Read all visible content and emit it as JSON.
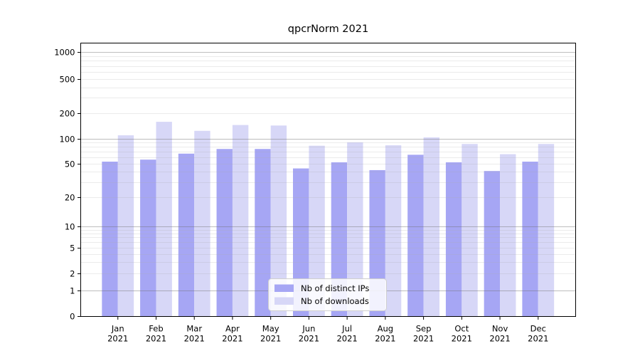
{
  "chart_data": {
    "type": "bar",
    "title": "qpcrNorm 2021",
    "xlabel": "",
    "ylabel": "",
    "year": "2021",
    "categories": [
      "Jan",
      "Feb",
      "Mar",
      "Apr",
      "May",
      "Jun",
      "Jul",
      "Aug",
      "Sep",
      "Oct",
      "Nov",
      "Dec"
    ],
    "series": [
      {
        "name": "Nb of distinct IPs",
        "color": "#a6a6f4",
        "values": [
          53,
          56,
          66,
          75,
          75,
          44,
          52,
          42,
          64,
          52,
          41,
          53
        ]
      },
      {
        "name": "Nb of downloads",
        "color": "#d7d7f7",
        "values": [
          109,
          157,
          123,
          144,
          142,
          82,
          90,
          83,
          103,
          86,
          65,
          86
        ]
      }
    ],
    "yticks": [
      0,
      1,
      2,
      5,
      10,
      20,
      50,
      100,
      200,
      500,
      1000
    ],
    "yscale": "symlog",
    "ylim": [
      0,
      1200
    ],
    "grid": {
      "on": true,
      "major_at": [
        1,
        10,
        100,
        1000
      ],
      "minor_multiples": [
        2,
        3,
        4,
        5,
        6,
        7,
        8,
        9
      ]
    },
    "legend": {
      "position": "inside-bottom-center",
      "items": [
        "Nb of distinct IPs",
        "Nb of downloads"
      ]
    },
    "scale_anchors": [
      [
        0,
        444
      ],
      [
        1,
        408
      ],
      [
        2,
        384
      ],
      [
        5,
        348
      ],
      [
        10,
        318
      ],
      [
        20,
        277
      ],
      [
        50,
        230
      ],
      [
        100,
        194.5
      ],
      [
        200,
        158.5
      ],
      [
        500,
        111
      ],
      [
        1000,
        73
      ]
    ]
  },
  "colors": {
    "bar_ips": "#a6a6f4",
    "bar_downloads": "#d7d7f7",
    "grid_major": "#bdbdbd",
    "grid_minor": "#ebebeb",
    "axis": "#000000",
    "legend_border": "#cfcfcf",
    "legend_bg": "rgba(255,255,255,0.85)"
  }
}
